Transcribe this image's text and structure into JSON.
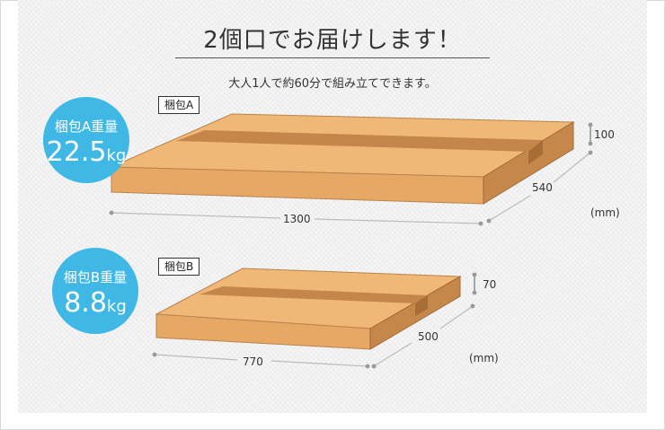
{
  "header": {
    "title": "2個口でお届けします！",
    "subtitle": "大人1人で約60分で組み立てできます。"
  },
  "packages": [
    {
      "tag": "梱包A",
      "weight_label": "梱包A重量",
      "weight_value": "22.5",
      "weight_unit": "kg",
      "width": "1300",
      "depth": "540",
      "height": "100",
      "unit": "(mm)"
    },
    {
      "tag": "梱包B",
      "weight_label": "梱包B重量",
      "weight_value": "8.8",
      "weight_unit": "kg",
      "width": "770",
      "depth": "500",
      "height": "70",
      "unit": "(mm)"
    }
  ],
  "colors": {
    "accent": "#3fb8e6",
    "box_top": "#f0b877",
    "box_front": "#e7a865",
    "box_side": "#c6884a",
    "tape": "#c4864a"
  }
}
